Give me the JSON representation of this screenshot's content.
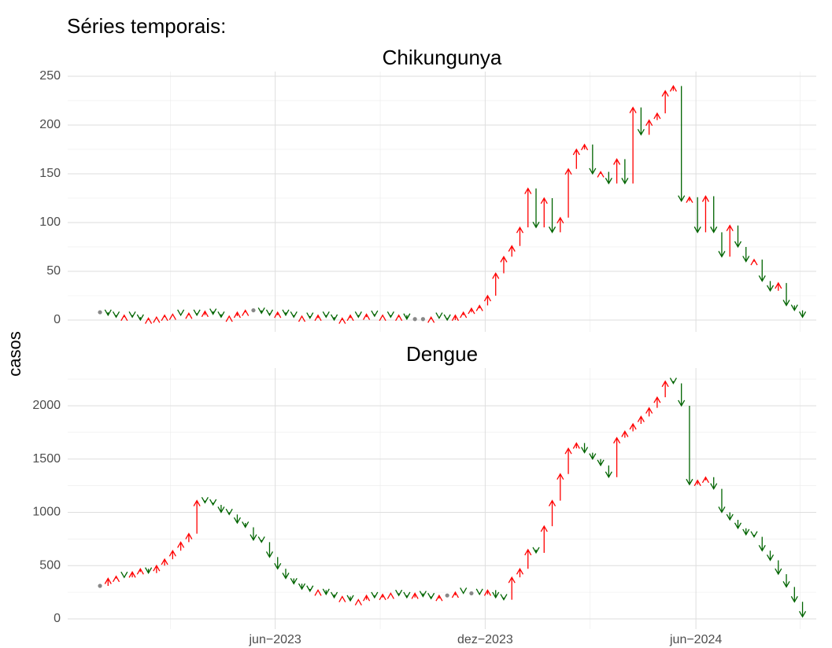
{
  "title": "Séries temporais:",
  "ylabel": "casos",
  "chart_data": [
    {
      "type": "arrow",
      "title": "Chikungunya",
      "x": [
        0,
        1,
        2,
        3,
        4,
        5,
        6,
        7,
        8,
        9,
        10,
        11,
        12,
        13,
        14,
        15,
        16,
        17,
        18,
        19,
        20,
        21,
        22,
        23,
        24,
        25,
        26,
        27,
        28,
        29,
        30,
        31,
        32,
        33,
        34,
        35,
        36,
        37,
        38,
        39,
        40,
        41,
        42,
        43,
        44,
        45,
        46,
        47,
        48,
        49,
        50,
        51,
        52,
        53,
        54,
        55,
        56,
        57,
        58,
        59,
        60,
        61,
        62,
        63,
        64,
        65,
        66,
        67,
        68,
        69,
        70,
        71,
        72,
        73,
        74,
        75,
        76,
        77,
        78,
        79,
        80,
        81,
        82,
        83,
        84,
        85,
        86,
        87
      ],
      "values": [
        8,
        5,
        3,
        5,
        3,
        0,
        2,
        3,
        5,
        6,
        5,
        7,
        5,
        9,
        6,
        3,
        4,
        8,
        10,
        10,
        7,
        5,
        8,
        5,
        3,
        4,
        2,
        5,
        3,
        0,
        2,
        5,
        3,
        6,
        4,
        5,
        3,
        5,
        1,
        1,
        1,
        3,
        2,
        0,
        5,
        8,
        12,
        15,
        25,
        48,
        65,
        76,
        95,
        135,
        95,
        125,
        90,
        105,
        155,
        175,
        180,
        150,
        152,
        140,
        165,
        140,
        218,
        190,
        205,
        212,
        235,
        240,
        122,
        126,
        90,
        127,
        90,
        65,
        97,
        75,
        60,
        62,
        40,
        30,
        38,
        15,
        10,
        3
      ],
      "xlim": [
        -4,
        88.7
      ],
      "ylim": [
        -12.1,
        254.8
      ],
      "xticks": [
        21.7,
        47.7,
        73.8
      ],
      "yticks": [
        0,
        50,
        100,
        150,
        200,
        250
      ],
      "up_color": "#ff0000",
      "down_color": "#006400",
      "flat_color": "#888888",
      "grid": true
    },
    {
      "type": "arrow",
      "title": "Dengue",
      "x": [
        0,
        1,
        2,
        3,
        4,
        5,
        6,
        7,
        8,
        9,
        10,
        11,
        12,
        13,
        14,
        15,
        16,
        17,
        18,
        19,
        20,
        21,
        22,
        23,
        24,
        25,
        26,
        27,
        28,
        29,
        30,
        31,
        32,
        33,
        34,
        35,
        36,
        37,
        38,
        39,
        40,
        41,
        42,
        43,
        44,
        45,
        46,
        47,
        48,
        49,
        50,
        51,
        52,
        53,
        54,
        55,
        56,
        57,
        58,
        59,
        60,
        61,
        62,
        63,
        64,
        65,
        66,
        67,
        68,
        69,
        70,
        71,
        72,
        73,
        74,
        75,
        76,
        77,
        78,
        79,
        80,
        81,
        82,
        83,
        84,
        85,
        86,
        87
      ],
      "values": [
        310,
        380,
        400,
        390,
        440,
        470,
        430,
        500,
        560,
        640,
        720,
        800,
        1110,
        1090,
        1070,
        1000,
        980,
        900,
        860,
        740,
        720,
        580,
        470,
        380,
        330,
        280,
        260,
        270,
        230,
        200,
        210,
        170,
        180,
        220,
        200,
        230,
        240,
        220,
        200,
        240,
        210,
        190,
        220,
        220,
        250,
        240,
        240,
        230,
        270,
        200,
        180,
        390,
        470,
        650,
        620,
        870,
        1110,
        1360,
        1600,
        1650,
        1560,
        1500,
        1440,
        1330,
        1700,
        1760,
        1830,
        1900,
        1980,
        2080,
        2230,
        2210,
        2000,
        1260,
        1300,
        1330,
        1220,
        1000,
        930,
        850,
        790,
        770,
        640,
        550,
        420,
        300,
        160,
        20
      ],
      "xlim": [
        -4,
        88.7
      ],
      "ylim": [
        -96,
        2354
      ],
      "xticks": [
        {
          "value": 21.7,
          "label": "jun−2023"
        },
        {
          "value": 47.7,
          "label": "dez−2023"
        },
        {
          "value": 73.8,
          "label": "jun−2024"
        }
      ],
      "yticks": [
        0,
        500,
        1000,
        1500,
        2000
      ],
      "up_color": "#ff0000",
      "down_color": "#006400",
      "flat_color": "#888888",
      "grid": true
    }
  ]
}
